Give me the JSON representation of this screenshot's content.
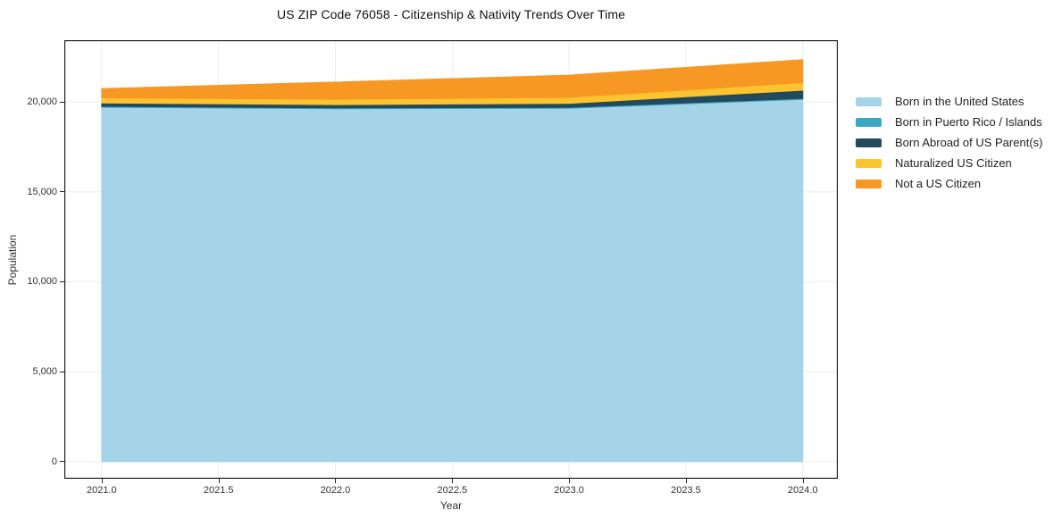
{
  "title": "US ZIP Code 76058 - Citizenship & Nativity Trends Over Time",
  "chart_data": {
    "type": "area",
    "stacked": true,
    "title": "US ZIP Code 76058 - Citizenship & Nativity Trends Over Time",
    "xlabel": "Year",
    "ylabel": "Population",
    "x": [
      2021,
      2022,
      2023,
      2024
    ],
    "series": [
      {
        "name": "Born in the United States",
        "color": "#a5d3e8",
        "values": [
          19700,
          19620,
          19640,
          20140
        ]
      },
      {
        "name": "Born in Puerto Rico / Islands",
        "color": "#3ba7c1",
        "values": [
          50,
          50,
          50,
          60
        ]
      },
      {
        "name": "Born Abroad of US Parent(s)",
        "color": "#24485c",
        "values": [
          190,
          180,
          230,
          450
        ]
      },
      {
        "name": "Naturalized US Citizen",
        "color": "#fdc42f",
        "values": [
          280,
          300,
          330,
          420
        ]
      },
      {
        "name": "Not a US Citizen",
        "color": "#f79724",
        "values": [
          520,
          950,
          1240,
          1280
        ]
      }
    ],
    "x_ticks": {
      "values": [
        2021.0,
        2021.5,
        2022.0,
        2022.5,
        2023.0,
        2023.5,
        2024.0
      ],
      "labels": [
        "2021.0",
        "2021.5",
        "2022.0",
        "2022.5",
        "2023.0",
        "2023.5",
        "2024.0"
      ]
    },
    "y_ticks": {
      "values": [
        0,
        5000,
        10000,
        15000,
        20000
      ],
      "labels": [
        "0",
        "5,000",
        "10,000",
        "15,000",
        "20,000"
      ]
    },
    "x_range": [
      2020.84,
      2024.15
    ],
    "y_range": [
      -950,
      23430
    ],
    "grid": true,
    "legend_position": "right",
    "plot_border_color": "#1a1a1a",
    "grid_color": "#ededed"
  }
}
